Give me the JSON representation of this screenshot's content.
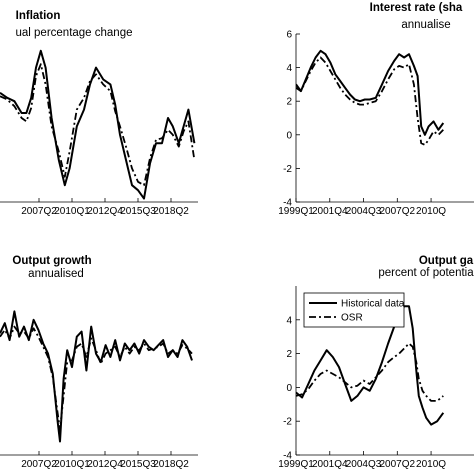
{
  "chart_data": [
    {
      "type": "line",
      "title": "Inflation",
      "subtitle": "ual percentage change",
      "ylim": [
        -4,
        6
      ],
      "xlim": [
        1999.0,
        2020.5
      ],
      "yticks": [],
      "xticks": [
        {
          "label": "2007Q2",
          "x": 2007.25
        },
        {
          "label": "2010Q1",
          "x": 2010.0
        },
        {
          "label": "2012Q4",
          "x": 2012.75
        },
        {
          "label": "2015Q3",
          "x": 2015.5
        },
        {
          "label": "2018Q2",
          "x": 2018.25
        }
      ],
      "series": [
        {
          "style": "solid",
          "x": [
            2004.0,
            2004.6,
            2005.2,
            2005.8,
            2006.2,
            2006.6,
            2007.0,
            2007.4,
            2007.8,
            2008.3,
            2008.9,
            2009.4,
            2009.8,
            2010.4,
            2011.0,
            2011.5,
            2012.0,
            2012.6,
            2013.2,
            2013.6,
            2014.0,
            2014.5,
            2015.0,
            2015.5,
            2016.0,
            2016.5,
            2017.0,
            2017.5,
            2018.0,
            2018.4,
            2018.9,
            2019.3,
            2019.7,
            2020.2
          ],
          "y": [
            2.5,
            2.2,
            2.0,
            1.3,
            1.3,
            2.2,
            4.0,
            5.0,
            4.0,
            1.0,
            -1.5,
            -3.0,
            -2.0,
            0.5,
            1.5,
            3.0,
            4.0,
            3.3,
            3.0,
            1.8,
            0.0,
            -1.5,
            -3.0,
            -3.3,
            -3.8,
            -1.7,
            -0.5,
            -0.5,
            1.0,
            0.5,
            -0.5,
            0.5,
            1.5,
            -0.5
          ]
        },
        {
          "style": "dashdot",
          "x": [
            2004.0,
            2004.6,
            2005.2,
            2005.8,
            2006.2,
            2006.6,
            2007.0,
            2007.4,
            2007.8,
            2008.3,
            2008.9,
            2009.4,
            2009.8,
            2010.4,
            2011.0,
            2011.5,
            2012.0,
            2012.6,
            2013.2,
            2013.6,
            2014.0,
            2014.5,
            2015.0,
            2015.5,
            2016.0,
            2016.5,
            2017.0,
            2017.5,
            2018.0,
            2018.4,
            2018.9,
            2019.3,
            2019.7,
            2020.2
          ],
          "y": [
            2.3,
            2.1,
            1.7,
            1.0,
            0.8,
            1.6,
            3.5,
            4.2,
            3.0,
            0.5,
            -1.0,
            -2.5,
            -1.0,
            1.5,
            2.2,
            3.2,
            3.6,
            3.0,
            2.6,
            1.4,
            0.5,
            -0.7,
            -2.0,
            -2.8,
            -3.0,
            -1.4,
            -0.3,
            -0.2,
            0.3,
            0.0,
            -0.7,
            0.2,
            0.8,
            -1.5
          ]
        }
      ]
    },
    {
      "type": "line",
      "title": "Interest rate (sha",
      "subtitle": "annualise",
      "ylim": [
        -4,
        6
      ],
      "xlim": [
        1999.0,
        2020.5
      ],
      "yticks": [
        -4,
        -2,
        0,
        2,
        4,
        6
      ],
      "xticks": [
        {
          "label": "1999Q1",
          "x": 1999.0
        },
        {
          "label": "2001Q4",
          "x": 2001.75
        },
        {
          "label": "2004Q3",
          "x": 2004.5
        },
        {
          "label": "2007Q2",
          "x": 2007.25
        },
        {
          "label": "2010Q",
          "x": 2010.0
        }
      ],
      "series": [
        {
          "style": "solid",
          "x": [
            1999.0,
            1999.4,
            1999.8,
            2000.2,
            2000.6,
            2001.0,
            2001.4,
            2001.8,
            2002.2,
            2002.6,
            2003.0,
            2003.4,
            2003.8,
            2004.2,
            2004.6,
            2005.0,
            2005.5,
            2006.0,
            2006.5,
            2007.0,
            2007.4,
            2007.8,
            2008.2,
            2008.6,
            2008.9,
            2009.2,
            2009.5,
            2009.8,
            2010.2,
            2010.6,
            2011.0
          ],
          "y": [
            3.0,
            2.6,
            3.3,
            4.0,
            4.6,
            5.0,
            4.8,
            4.3,
            3.6,
            3.2,
            2.8,
            2.4,
            2.1,
            2.0,
            2.1,
            2.1,
            2.2,
            3.0,
            3.8,
            4.4,
            4.8,
            4.6,
            4.8,
            4.1,
            3.5,
            0.5,
            0.0,
            0.5,
            0.8,
            0.3,
            0.7
          ]
        },
        {
          "style": "dashdot",
          "x": [
            1999.0,
            1999.4,
            1999.8,
            2000.2,
            2000.6,
            2001.0,
            2001.4,
            2001.8,
            2002.2,
            2002.6,
            2003.0,
            2003.4,
            2003.8,
            2004.2,
            2004.6,
            2005.0,
            2005.5,
            2006.0,
            2006.5,
            2007.0,
            2007.4,
            2007.8,
            2008.2,
            2008.6,
            2008.9,
            2009.2,
            2009.5,
            2009.8,
            2010.2,
            2010.6,
            2011.0
          ],
          "y": [
            2.8,
            2.6,
            3.2,
            3.8,
            4.3,
            4.6,
            4.3,
            3.8,
            3.3,
            2.8,
            2.4,
            2.1,
            1.9,
            1.8,
            1.8,
            1.9,
            2.0,
            2.6,
            3.3,
            3.9,
            4.1,
            4.0,
            4.2,
            3.0,
            1.0,
            -0.5,
            -0.6,
            -0.3,
            0.2,
            0.0,
            0.3
          ]
        }
      ]
    },
    {
      "type": "line",
      "title": "Output growth",
      "subtitle": "annualised",
      "ylim": [
        -4,
        6
      ],
      "xlim": [
        1999.0,
        2020.5
      ],
      "yticks": [],
      "xticks": [
        {
          "label": "2007Q2",
          "x": 2007.25
        },
        {
          "label": "2010Q1",
          "x": 2010.0
        },
        {
          "label": "2012Q4",
          "x": 2012.75
        },
        {
          "label": "2015Q3",
          "x": 2015.5
        },
        {
          "label": "2018Q2",
          "x": 2018.25
        }
      ],
      "series": [
        {
          "style": "solid",
          "x": [
            2004.0,
            2004.4,
            2004.8,
            2005.2,
            2005.6,
            2006.0,
            2006.4,
            2006.8,
            2007.2,
            2007.6,
            2008.0,
            2008.4,
            2008.8,
            2009.0,
            2009.3,
            2009.6,
            2010.0,
            2010.4,
            2010.8,
            2011.2,
            2011.6,
            2012.0,
            2012.4,
            2012.8,
            2013.2,
            2013.6,
            2014.0,
            2014.4,
            2014.8,
            2015.2,
            2015.6,
            2016.0,
            2016.4,
            2016.8,
            2017.2,
            2017.6,
            2018.0,
            2018.4,
            2018.8,
            2019.2,
            2019.6,
            2020.0
          ],
          "y": [
            3.2,
            3.8,
            2.8,
            4.5,
            3.0,
            3.6,
            2.8,
            4.0,
            3.4,
            2.6,
            2.0,
            0.8,
            -2.0,
            -3.2,
            0.5,
            2.2,
            1.2,
            3.0,
            3.3,
            1.0,
            3.6,
            2.0,
            1.5,
            2.5,
            1.8,
            2.8,
            1.6,
            2.6,
            2.2,
            2.6,
            2.0,
            2.8,
            2.4,
            2.2,
            2.5,
            2.8,
            1.8,
            2.2,
            1.8,
            2.8,
            2.4,
            1.6
          ]
        },
        {
          "style": "dashdot",
          "x": [
            2004.0,
            2004.4,
            2004.8,
            2005.2,
            2005.6,
            2006.0,
            2006.4,
            2006.8,
            2007.2,
            2007.6,
            2008.0,
            2008.4,
            2008.8,
            2009.0,
            2009.3,
            2009.6,
            2010.0,
            2010.4,
            2010.8,
            2011.2,
            2011.6,
            2012.0,
            2012.4,
            2012.8,
            2013.2,
            2013.6,
            2014.0,
            2014.4,
            2014.8,
            2015.2,
            2015.6,
            2016.0,
            2016.4,
            2016.8,
            2017.2,
            2017.6,
            2018.0,
            2018.4,
            2018.8,
            2019.2,
            2019.6,
            2020.0
          ],
          "y": [
            3.0,
            3.4,
            2.9,
            3.6,
            3.2,
            3.3,
            2.9,
            3.5,
            3.0,
            2.4,
            1.8,
            0.6,
            -1.5,
            -2.5,
            -0.5,
            1.5,
            1.6,
            2.4,
            2.6,
            1.8,
            2.9,
            2.2,
            1.4,
            2.0,
            2.2,
            2.4,
            1.8,
            2.4,
            2.0,
            2.4,
            2.2,
            2.6,
            2.2,
            2.3,
            2.4,
            2.6,
            2.0,
            2.2,
            2.0,
            2.5,
            2.3,
            2.0
          ]
        }
      ]
    },
    {
      "type": "line",
      "title": "Output ga",
      "subtitle": "percent of potentia",
      "ylim": [
        -4,
        6
      ],
      "xlim": [
        1999.0,
        2020.5
      ],
      "yticks": [
        -4,
        -2,
        0,
        2,
        4
      ],
      "xticks": [
        {
          "label": "1999Q1",
          "x": 1999.0
        },
        {
          "label": "2001Q4",
          "x": 2001.75
        },
        {
          "label": "2004Q3",
          "x": 2004.5
        },
        {
          "label": "2007Q2",
          "x": 2007.25
        },
        {
          "label": "2010Q",
          "x": 2010.0
        }
      ],
      "legend": {
        "position": "top-left",
        "entries": [
          {
            "label": "Historical data",
            "style": "solid"
          },
          {
            "label": "OSR",
            "style": "dashdot"
          }
        ]
      },
      "series": [
        {
          "style": "solid",
          "x": [
            1999.0,
            1999.5,
            2000.0,
            2000.5,
            2001.0,
            2001.5,
            2002.0,
            2002.5,
            2003.0,
            2003.5,
            2004.0,
            2004.5,
            2005.0,
            2005.5,
            2006.0,
            2006.5,
            2007.0,
            2007.4,
            2007.8,
            2008.2,
            2008.5,
            2008.8,
            2009.0,
            2009.3,
            2009.6,
            2010.0,
            2010.5,
            2011.0
          ],
          "y": [
            -0.3,
            -0.6,
            0.2,
            1.0,
            1.6,
            2.2,
            1.8,
            1.2,
            0.2,
            -0.8,
            -0.5,
            0.0,
            -0.2,
            0.5,
            1.5,
            2.6,
            3.6,
            4.2,
            4.8,
            4.8,
            3.5,
            1.0,
            -0.5,
            -1.2,
            -1.8,
            -2.2,
            -2.0,
            -1.5
          ]
        },
        {
          "style": "dashdot",
          "x": [
            1999.0,
            1999.5,
            2000.0,
            2000.5,
            2001.0,
            2001.5,
            2002.0,
            2002.5,
            2003.0,
            2003.5,
            2004.0,
            2004.5,
            2005.0,
            2005.5,
            2006.0,
            2006.5,
            2007.0,
            2007.4,
            2007.8,
            2008.2,
            2008.5,
            2008.8,
            2009.0,
            2009.3,
            2009.6,
            2010.0,
            2010.5,
            2011.0
          ],
          "y": [
            -0.5,
            -0.4,
            -0.1,
            0.4,
            0.8,
            1.0,
            0.8,
            0.6,
            0.3,
            0.0,
            0.1,
            0.4,
            0.2,
            0.6,
            1.0,
            1.5,
            1.8,
            2.0,
            2.3,
            2.6,
            2.4,
            1.5,
            0.5,
            -0.2,
            -0.5,
            -0.8,
            -0.8,
            -0.5
          ]
        }
      ]
    }
  ]
}
